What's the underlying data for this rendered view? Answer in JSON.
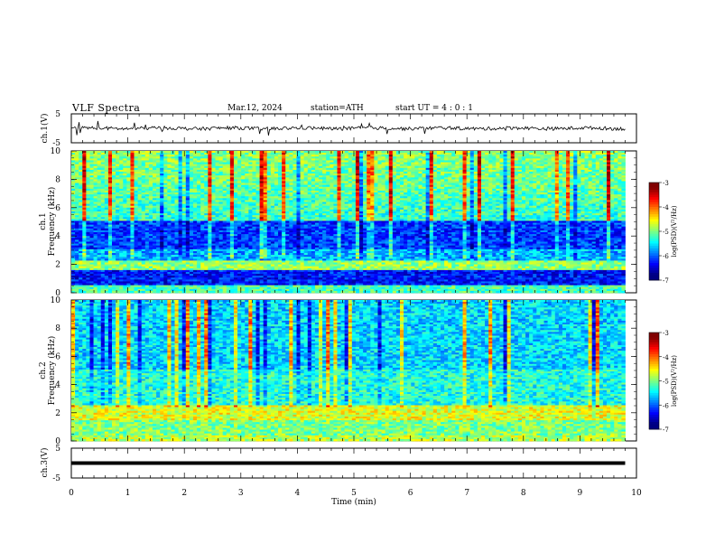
{
  "header": {
    "title": "VLF  Spectra",
    "date": "Mar.12, 2024",
    "station": "station=ATH",
    "start_ut": "start  UT  =   4  : 0  : 1"
  },
  "chart_data": [
    {
      "type": "line",
      "ylabel": "ch.1(V)",
      "yticks": [
        "5",
        "-5"
      ],
      "ylim": [
        -5,
        5
      ],
      "xlim": [
        0,
        10
      ],
      "data_extent_x": [
        0,
        9.8
      ],
      "description_values": {
        "mean_v": 0,
        "noise_amplitude_v": 0.6,
        "spike_amplitude_v": 2.5
      }
    },
    {
      "type": "heatmap",
      "ylabel_top": "ch.1",
      "ylabel": "Frequency  (kHz)",
      "yticks": [
        "0",
        "2",
        "4",
        "6",
        "8",
        "10"
      ],
      "ylim": [
        0,
        10
      ],
      "xlim": [
        0,
        10
      ],
      "data_extent_x": [
        0,
        9.8
      ],
      "colorbar": {
        "label": "log(PSD)(V²/Hz)",
        "ticks": [
          "-3",
          "-4",
          "-5",
          "-6",
          "-7"
        ],
        "range": [
          -7,
          -3
        ]
      }
    },
    {
      "type": "heatmap",
      "ylabel_top": "ch.2",
      "ylabel": "Frequency  (kHz)",
      "yticks": [
        "0",
        "2",
        "4",
        "6",
        "8",
        "10"
      ],
      "ylim": [
        0,
        10
      ],
      "xlim": [
        0,
        10
      ],
      "data_extent_x": [
        0,
        9.8
      ],
      "colorbar": {
        "label": "log(PSD)(V²/Hz)",
        "ticks": [
          "-3",
          "-4",
          "-5",
          "-6",
          "-7"
        ],
        "range": [
          -7,
          -3
        ]
      }
    },
    {
      "type": "line",
      "ylabel": "ch.3(V)",
      "yticks": [
        "5",
        "-5"
      ],
      "ylim": [
        -5,
        5
      ],
      "xlim": [
        0,
        10
      ],
      "data_extent_x": [
        0,
        9.8
      ],
      "xlabel": "Time  (min)",
      "xticks": [
        "0",
        "1",
        "2",
        "3",
        "4",
        "5",
        "6",
        "7",
        "8",
        "9",
        "10"
      ],
      "description_values": {
        "constant_v": 0
      }
    }
  ],
  "colors": {
    "axis": "#000000",
    "background": "#ffffff"
  }
}
